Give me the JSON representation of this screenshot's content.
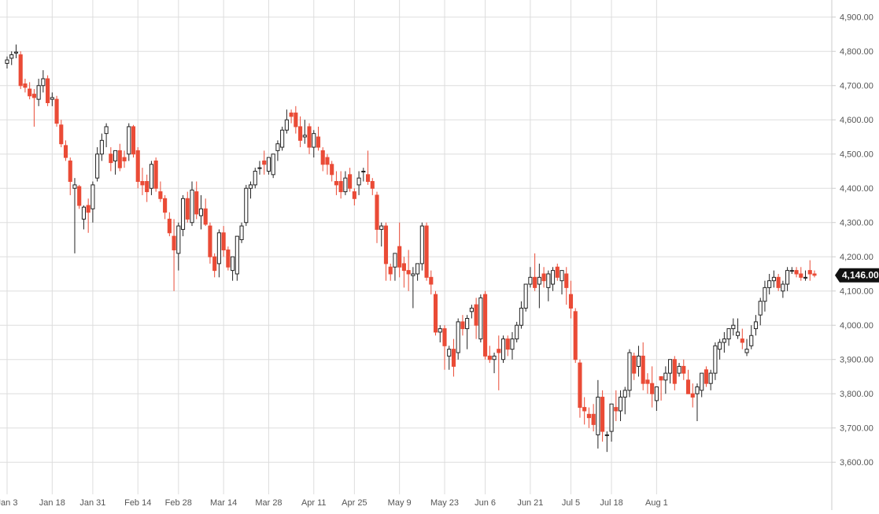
{
  "chart_data": {
    "type": "candlestick",
    "colors": {
      "up_fill": "#ffffff",
      "up_stroke": "#222222",
      "down_fill": "#ea4b36",
      "down_stroke": "#ea4b36",
      "grid": "#dddddd",
      "axis_text": "#555555",
      "last_badge_bg": "#111111",
      "last_badge_text": "#ffffff"
    },
    "ylim": [
      3520,
      4950
    ],
    "y_ticks": [
      {
        "value": 3600,
        "label": "3,600.00"
      },
      {
        "value": 3700,
        "label": "3,700.00"
      },
      {
        "value": 3800,
        "label": "3,800.00"
      },
      {
        "value": 3900,
        "label": "3,900.00"
      },
      {
        "value": 4000,
        "label": "4,000.00"
      },
      {
        "value": 4100,
        "label": "4,100.00"
      },
      {
        "value": 4200,
        "label": "4,200.00"
      },
      {
        "value": 4300,
        "label": "4,300.00"
      },
      {
        "value": 4400,
        "label": "4,400.00"
      },
      {
        "value": 4500,
        "label": "4,500.00"
      },
      {
        "value": 4600,
        "label": "4,600.00"
      },
      {
        "value": 4700,
        "label": "4,700.00"
      },
      {
        "value": 4800,
        "label": "4,800.00"
      },
      {
        "value": 4900,
        "label": "4,900.00"
      }
    ],
    "x_ticks": [
      {
        "label": "Jan 3",
        "index": 0
      },
      {
        "label": "Jan 18",
        "index": 10
      },
      {
        "label": "Jan 31",
        "index": 19
      },
      {
        "label": "Feb 14",
        "index": 29
      },
      {
        "label": "Feb 28",
        "index": 38
      },
      {
        "label": "Mar 14",
        "index": 48
      },
      {
        "label": "Mar 28",
        "index": 58
      },
      {
        "label": "Apr 11",
        "index": 68
      },
      {
        "label": "Apr 25",
        "index": 77
      },
      {
        "label": "May 9",
        "index": 87
      },
      {
        "label": "May 23",
        "index": 97
      },
      {
        "label": "Jun 6",
        "index": 106
      },
      {
        "label": "Jun 21",
        "index": 116
      },
      {
        "label": "Jul 5",
        "index": 125
      },
      {
        "label": "Jul 18",
        "index": 134
      },
      {
        "label": "Aug 1",
        "index": 144
      }
    ],
    "last_value_label": "4,146.00",
    "last_value": 4146,
    "candles": [
      [
        4765,
        4785,
        4750,
        4775
      ],
      [
        4780,
        4800,
        4760,
        4790
      ],
      [
        4795,
        4820,
        4780,
        4798
      ],
      [
        4790,
        4800,
        4690,
        4700
      ],
      [
        4705,
        4720,
        4680,
        4695
      ],
      [
        4690,
        4710,
        4660,
        4670
      ],
      [
        4675,
        4690,
        4580,
        4665
      ],
      [
        4660,
        4720,
        4640,
        4700
      ],
      [
        4700,
        4745,
        4680,
        4720
      ],
      [
        4720,
        4730,
        4640,
        4650
      ],
      [
        4660,
        4680,
        4640,
        4665
      ],
      [
        4660,
        4670,
        4580,
        4590
      ],
      [
        4585,
        4600,
        4520,
        4530
      ],
      [
        4525,
        4540,
        4480,
        4490
      ],
      [
        4480,
        4490,
        4380,
        4420
      ],
      [
        4400,
        4430,
        4210,
        4410
      ],
      [
        4405,
        4410,
        4340,
        4350
      ],
      [
        4310,
        4350,
        4280,
        4345
      ],
      [
        4350,
        4370,
        4270,
        4330
      ],
      [
        4340,
        4420,
        4300,
        4410
      ],
      [
        4430,
        4520,
        4420,
        4500
      ],
      [
        4500,
        4560,
        4480,
        4540
      ],
      [
        4560,
        4590,
        4520,
        4580
      ],
      [
        4500,
        4520,
        4450,
        4475
      ],
      [
        4480,
        4510,
        4440,
        4510
      ],
      [
        4510,
        4530,
        4450,
        4460
      ],
      [
        4490,
        4510,
        4460,
        4480
      ],
      [
        4500,
        4590,
        4480,
        4580
      ],
      [
        4580,
        4585,
        4490,
        4500
      ],
      [
        4510,
        4520,
        4400,
        4420
      ],
      [
        4420,
        4460,
        4380,
        4410
      ],
      [
        4420,
        4440,
        4360,
        4390
      ],
      [
        4400,
        4480,
        4380,
        4470
      ],
      [
        4480,
        4490,
        4390,
        4400
      ],
      [
        4390,
        4420,
        4360,
        4370
      ],
      [
        4370,
        4380,
        4310,
        4330
      ],
      [
        4310,
        4330,
        4260,
        4270
      ],
      [
        4260,
        4310,
        4100,
        4220
      ],
      [
        4210,
        4300,
        4160,
        4290
      ],
      [
        4280,
        4380,
        4260,
        4370
      ],
      [
        4370,
        4390,
        4300,
        4310
      ],
      [
        4300,
        4420,
        4290,
        4395
      ],
      [
        4390,
        4420,
        4310,
        4325
      ],
      [
        4320,
        4380,
        4280,
        4340
      ],
      [
        4340,
        4370,
        4290,
        4295
      ],
      [
        4290,
        4300,
        4180,
        4200
      ],
      [
        4200,
        4210,
        4140,
        4160
      ],
      [
        4180,
        4280,
        4140,
        4270
      ],
      [
        4270,
        4290,
        4200,
        4220
      ],
      [
        4220,
        4230,
        4160,
        4170
      ],
      [
        4160,
        4200,
        4130,
        4200
      ],
      [
        4150,
        4260,
        4130,
        4260
      ],
      [
        4250,
        4300,
        4240,
        4290
      ],
      [
        4300,
        4410,
        4290,
        4400
      ],
      [
        4400,
        4420,
        4370,
        4410
      ],
      [
        4410,
        4460,
        4400,
        4450
      ],
      [
        4460,
        4480,
        4440,
        4460
      ],
      [
        4480,
        4510,
        4440,
        4470
      ],
      [
        4450,
        4490,
        4440,
        4490
      ],
      [
        4440,
        4500,
        4430,
        4500
      ],
      [
        4510,
        4540,
        4480,
        4530
      ],
      [
        4520,
        4580,
        4510,
        4570
      ],
      [
        4570,
        4630,
        4560,
        4600
      ],
      [
        4620,
        4630,
        4590,
        4610
      ],
      [
        4620,
        4640,
        4560,
        4580
      ],
      [
        4580,
        4610,
        4520,
        4540
      ],
      [
        4550,
        4600,
        4530,
        4555
      ],
      [
        4580,
        4590,
        4500,
        4520
      ],
      [
        4520,
        4570,
        4490,
        4560
      ],
      [
        4550,
        4580,
        4510,
        4520
      ],
      [
        4510,
        4520,
        4450,
        4470
      ],
      [
        4490,
        4500,
        4440,
        4470
      ],
      [
        4470,
        4480,
        4420,
        4440
      ],
      [
        4420,
        4450,
        4380,
        4410
      ],
      [
        4420,
        4450,
        4370,
        4390
      ],
      [
        4390,
        4450,
        4380,
        4430
      ],
      [
        4440,
        4460,
        4390,
        4400
      ],
      [
        4390,
        4400,
        4350,
        4370
      ],
      [
        4410,
        4450,
        4380,
        4430
      ],
      [
        4450,
        4460,
        4420,
        4450
      ],
      [
        4440,
        4510,
        4410,
        4420
      ],
      [
        4420,
        4430,
        4380,
        4400
      ],
      [
        4380,
        4390,
        4240,
        4280
      ],
      [
        4280,
        4300,
        4230,
        4290
      ],
      [
        4290,
        4300,
        4130,
        4180
      ],
      [
        4170,
        4180,
        4130,
        4150
      ],
      [
        4170,
        4210,
        4130,
        4210
      ],
      [
        4230,
        4300,
        4140,
        4170
      ],
      [
        4180,
        4200,
        4110,
        4160
      ],
      [
        4160,
        4220,
        4100,
        4150
      ],
      [
        4145,
        4170,
        4050,
        4150
      ],
      [
        4150,
        4180,
        4130,
        4180
      ],
      [
        4180,
        4300,
        4160,
        4290
      ],
      [
        4290,
        4300,
        4130,
        4140
      ],
      [
        4140,
        4160,
        4090,
        4120
      ],
      [
        4090,
        4100,
        3970,
        3980
      ],
      [
        3980,
        4000,
        3950,
        3990
      ],
      [
        3990,
        4000,
        3870,
        3940
      ],
      [
        3910,
        3940,
        3870,
        3930
      ],
      [
        3930,
        3960,
        3850,
        3880
      ],
      [
        3920,
        4020,
        3900,
        4010
      ],
      [
        4010,
        4030,
        3970,
        3990
      ],
      [
        3990,
        4030,
        3930,
        4020
      ],
      [
        4040,
        4060,
        4020,
        4050
      ],
      [
        4060,
        4080,
        3960,
        4000
      ],
      [
        3960,
        4090,
        3950,
        4080
      ],
      [
        4090,
        4100,
        3900,
        3910
      ],
      [
        3910,
        3940,
        3890,
        3900
      ],
      [
        3900,
        3920,
        3860,
        3910
      ],
      [
        3930,
        3970,
        3810,
        3920
      ],
      [
        3900,
        3970,
        3890,
        3960
      ],
      [
        3960,
        3970,
        3910,
        3930
      ],
      [
        3930,
        3980,
        3900,
        3960
      ],
      [
        3960,
        4010,
        3950,
        4000
      ],
      [
        4000,
        4070,
        3990,
        4050
      ],
      [
        4050,
        4120,
        4040,
        4120
      ],
      [
        4120,
        4170,
        4110,
        4140
      ],
      [
        4140,
        4210,
        4100,
        4110
      ],
      [
        4120,
        4180,
        4050,
        4140
      ],
      [
        4150,
        4170,
        4110,
        4130
      ],
      [
        4110,
        4160,
        4070,
        4150
      ],
      [
        4120,
        4170,
        4100,
        4160
      ],
      [
        4170,
        4180,
        4130,
        4140
      ],
      [
        4130,
        4160,
        4090,
        4160
      ],
      [
        4150,
        4170,
        4060,
        4110
      ],
      [
        4090,
        4130,
        4020,
        4050
      ],
      [
        4040,
        4050,
        3890,
        3900
      ],
      [
        3890,
        3900,
        3730,
        3760
      ],
      [
        3760,
        3790,
        3710,
        3750
      ],
      [
        3740,
        3760,
        3700,
        3730
      ],
      [
        3740,
        3770,
        3690,
        3710
      ],
      [
        3680,
        3840,
        3640,
        3790
      ],
      [
        3790,
        3810,
        3660,
        3690
      ],
      [
        3680,
        3690,
        3630,
        3680
      ],
      [
        3690,
        3770,
        3660,
        3770
      ],
      [
        3760,
        3810,
        3720,
        3750
      ],
      [
        3750,
        3810,
        3720,
        3790
      ],
      [
        3790,
        3820,
        3740,
        3810
      ],
      [
        3810,
        3930,
        3790,
        3920
      ],
      [
        3910,
        3920,
        3840,
        3860
      ],
      [
        3880,
        3940,
        3850,
        3910
      ],
      [
        3910,
        3950,
        3810,
        3830
      ],
      [
        3840,
        3860,
        3800,
        3830
      ],
      [
        3830,
        3880,
        3760,
        3800
      ],
      [
        3780,
        3820,
        3750,
        3820
      ],
      [
        3850,
        3850,
        3780,
        3840
      ],
      [
        3840,
        3880,
        3800,
        3860
      ],
      [
        3860,
        3900,
        3830,
        3900
      ],
      [
        3900,
        3910,
        3810,
        3830
      ],
      [
        3860,
        3890,
        3850,
        3880
      ],
      [
        3880,
        3900,
        3840,
        3860
      ],
      [
        3840,
        3870,
        3800,
        3800
      ],
      [
        3800,
        3830,
        3760,
        3790
      ],
      [
        3800,
        3830,
        3720,
        3820
      ],
      [
        3810,
        3860,
        3790,
        3860
      ],
      [
        3870,
        3880,
        3820,
        3830
      ],
      [
        3830,
        3870,
        3810,
        3860
      ],
      [
        3860,
        3950,
        3840,
        3940
      ],
      [
        3930,
        3960,
        3900,
        3950
      ],
      [
        3950,
        3980,
        3920,
        3960
      ],
      [
        3960,
        3990,
        3940,
        3990
      ],
      [
        3990,
        4020,
        3970,
        4000
      ],
      [
        3970,
        4020,
        3960,
        3980
      ],
      [
        3960,
        3990,
        3930,
        3950
      ],
      [
        3920,
        3960,
        3910,
        3930
      ],
      [
        3940,
        4000,
        3930,
        3970
      ],
      [
        3990,
        4030,
        3970,
        4010
      ],
      [
        4030,
        4080,
        4000,
        4070
      ],
      [
        4070,
        4130,
        4040,
        4110
      ],
      [
        4110,
        4150,
        4090,
        4130
      ],
      [
        4130,
        4160,
        4110,
        4140
      ],
      [
        4140,
        4150,
        4100,
        4110
      ],
      [
        4100,
        4130,
        4080,
        4120
      ],
      [
        4120,
        4170,
        4100,
        4160
      ],
      [
        4160,
        4170,
        4150,
        4160
      ],
      [
        4160,
        4170,
        4140,
        4150
      ],
      [
        4150,
        4170,
        4130,
        4140
      ],
      [
        4140,
        4160,
        4130,
        4140
      ],
      [
        4160,
        4190,
        4130,
        4150
      ],
      [
        4150,
        4160,
        4140,
        4146
      ]
    ]
  }
}
